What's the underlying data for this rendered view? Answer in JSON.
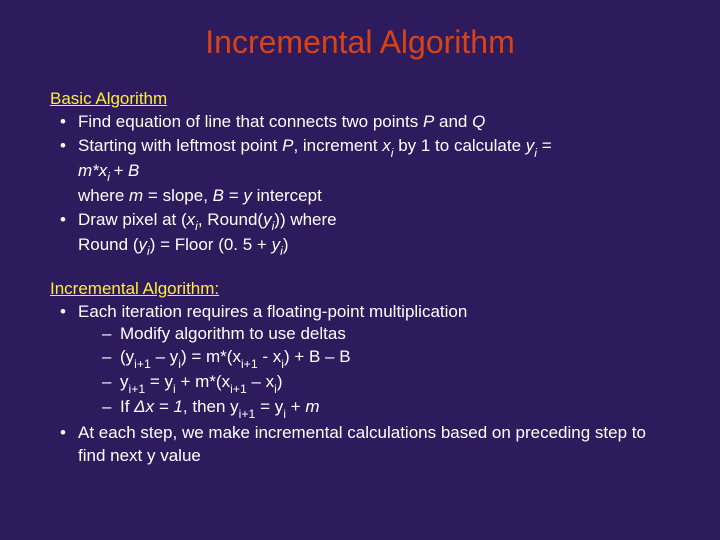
{
  "colors": {
    "background": "#2d1b5e",
    "title": "#d84315",
    "heading": "#ffeb3b",
    "body": "#ffffff"
  },
  "typography": {
    "title_fontsize": 32,
    "heading_fontsize": 17,
    "body_fontsize": 17,
    "font_family": "Arial"
  },
  "title": "Incremental Algorithm",
  "section1": {
    "heading": "Basic Algorithm",
    "b1_pre": "Find equation of line that connects two points ",
    "b1_P": "P",
    "b1_mid": " and ",
    "b1_Q": "Q",
    "b2_pre": "Starting with leftmost point ",
    "b2_P": "P",
    "b2_mid1": ", increment ",
    "b2_x": "x",
    "b2_i1": "i",
    "b2_mid2": " by 1 to calculate ",
    "b2_y": "y",
    "b2_i2": "i",
    "b2_eq": " = ",
    "b2_mx": "m*x",
    "b2_i3": "i ",
    "b2_plusB": "+ B",
    "b2_l2_where": "where ",
    "b2_l2_m": "m",
    "b2_l2_slope": " = slope, ",
    "b2_l2_B": "B",
    "b2_l2_eq": " = ",
    "b2_l2_y": "y",
    "b2_l2_int": " intercept",
    "b3_pre": "Draw pixel at (",
    "b3_x": "x",
    "b3_i1": "i",
    "b3_mid1": ", Round(",
    "b3_y1": "y",
    "b3_i2": "i",
    "b3_mid2": ")) where",
    "b3_l2_pre": "Round (",
    "b3_l2_y": "y",
    "b3_l2_i1": "i",
    "b3_l2_mid": ") = Floor (0. 5 + ",
    "b3_l2_y2": "y",
    "b3_l2_i2": "i",
    "b3_l2_end": ")"
  },
  "section2": {
    "heading": "Incremental Algorithm:",
    "b1": "Each iteration requires a floating-point multiplication",
    "s1": "Modify algorithm to use deltas",
    "s2_open": "(",
    "s2_y1": "y",
    "s2_i1": "i+1",
    "s2_m1": " – ",
    "s2_y2": "y",
    "s2_i2": "i",
    "s2_eq": ") = m*(",
    "s2_x1": "x",
    "s2_i3": "i+1",
    "s2_m2": " - ",
    "s2_x2": "x",
    "s2_i4": "i",
    "s2_end": ") + B – B",
    "s3_y1": "y",
    "s3_i1": "i+1",
    "s3_eq": " = ",
    "s3_y2": "y",
    "s3_i2": "i",
    "s3_plus": " + m*(",
    "s3_x1": "x",
    "s3_i3": "i+1",
    "s3_m": " – ",
    "s3_x2": "x",
    "s3_i4": "i",
    "s3_end": ")",
    "s4_if": "If ",
    "s4_dx": "Δx = 1",
    "s4_then": ", then ",
    "s4_y1": "y",
    "s4_i1": "i+1",
    "s4_eq": " = ",
    "s4_y2": "y",
    "s4_i2": "i",
    "s4_plus": " + ",
    "s4_m": "m",
    "b2": "At each step, we make incremental calculations based on preceding step to find next y value"
  }
}
